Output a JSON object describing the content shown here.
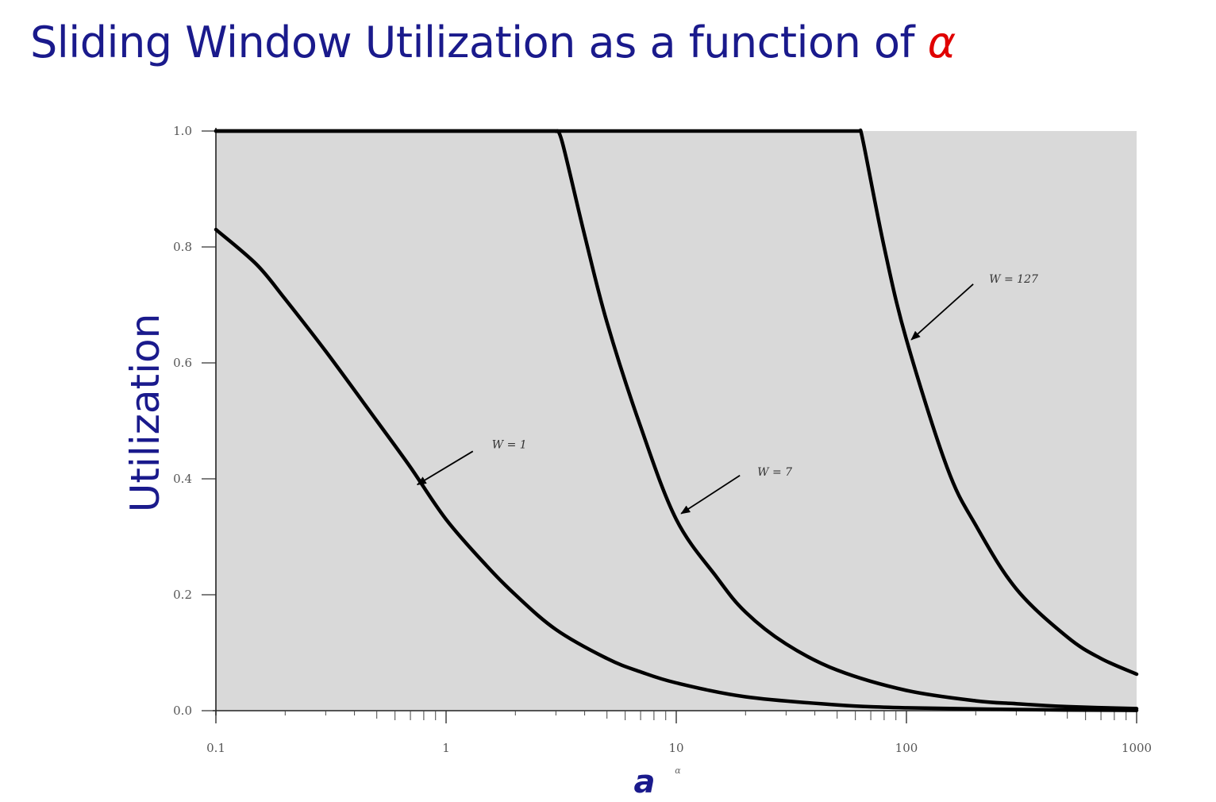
{
  "slide": {
    "title_main": "Sliding Window Utilization as a function of ",
    "title_symbol": "α"
  },
  "chart_data": {
    "type": "line",
    "title": "Sliding Window Utilization as a function of α",
    "xlabel": "a",
    "xlabel_small": "α",
    "ylabel": "Utilization",
    "x_scale": "log",
    "xlim": [
      0.1,
      1000
    ],
    "ylim": [
      0.0,
      1.0
    ],
    "x_ticks": [
      "0.1",
      "1",
      "10",
      "100",
      "1000"
    ],
    "y_ticks": [
      "0.0",
      "0.2",
      "0.4",
      "0.6",
      "0.8",
      "1.0"
    ],
    "plot_background": "#d9d9d9",
    "line_color": "#000000",
    "series": [
      {
        "name": "W = 1",
        "x": [
          0.1,
          0.15,
          0.2,
          0.3,
          0.5,
          0.7,
          1,
          1.5,
          2,
          3,
          5,
          7,
          10,
          20,
          50,
          100,
          300,
          1000
        ],
        "y": [
          0.83,
          0.77,
          0.71,
          0.62,
          0.5,
          0.42,
          0.33,
          0.25,
          0.2,
          0.14,
          0.09,
          0.067,
          0.048,
          0.024,
          0.01,
          0.005,
          0.002,
          0.0005
        ]
      },
      {
        "name": "W = 7",
        "x": [
          0.1,
          1,
          2,
          3,
          3.2,
          4,
          5,
          7,
          10,
          15,
          20,
          30,
          50,
          100,
          200,
          300,
          500,
          1000
        ],
        "y": [
          1.0,
          1.0,
          1.0,
          1.0,
          0.98,
          0.82,
          0.67,
          0.49,
          0.33,
          0.23,
          0.17,
          0.115,
          0.07,
          0.035,
          0.017,
          0.012,
          0.007,
          0.0035
        ]
      },
      {
        "name": "W = 127",
        "x": [
          0.1,
          1,
          10,
          50,
          63,
          65,
          80,
          100,
          150,
          200,
          300,
          500,
          700,
          1000
        ],
        "y": [
          1.0,
          1.0,
          1.0,
          1.0,
          1.0,
          0.98,
          0.8,
          0.64,
          0.42,
          0.32,
          0.21,
          0.127,
          0.09,
          0.063
        ]
      }
    ],
    "annotations": [
      {
        "text": "W = 1",
        "point_x": 0.75,
        "point_y": 0.39
      },
      {
        "text": "W = 7",
        "point_x": 10.5,
        "point_y": 0.34
      },
      {
        "text": "W = 127",
        "point_x": 105,
        "point_y": 0.64
      }
    ]
  }
}
